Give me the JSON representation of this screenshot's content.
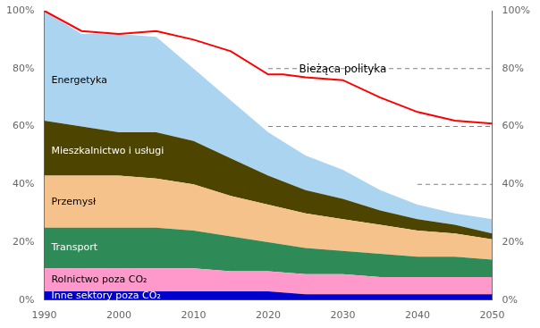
{
  "chart_data": {
    "type": "area",
    "stacked": true,
    "x": [
      1990,
      1995,
      2000,
      2005,
      2010,
      2015,
      2020,
      2025,
      2030,
      2035,
      2040,
      2045,
      2050
    ],
    "series": [
      {
        "name": "Inne sektory poza CO₂",
        "color": "#0000cc",
        "values": [
          3,
          3,
          3,
          3,
          3,
          3,
          3,
          2,
          2,
          2,
          2,
          2,
          2
        ]
      },
      {
        "name": "Rolnictwo poza CO₂",
        "color": "#ff99cc",
        "values": [
          8,
          8,
          8,
          8,
          8,
          7,
          7,
          7,
          7,
          6,
          6,
          6,
          6
        ]
      },
      {
        "name": "Transport",
        "color": "#2e8b57",
        "values": [
          14,
          14,
          14,
          14,
          13,
          12,
          10,
          9,
          8,
          8,
          7,
          7,
          6
        ]
      },
      {
        "name": "Przemysł",
        "color": "#f4c28a",
        "values": [
          18,
          18,
          18,
          17,
          16,
          14,
          13,
          12,
          11,
          10,
          9,
          8,
          7
        ]
      },
      {
        "name": "Mieszkalnictwo i usługi",
        "color": "#4d4400",
        "values": [
          19,
          17,
          15,
          16,
          15,
          13,
          10,
          8,
          7,
          5,
          4,
          3,
          2
        ]
      },
      {
        "name": "Energetyka",
        "color": "#aad4f0",
        "values": [
          38,
          32,
          34,
          33,
          25,
          20,
          15,
          12,
          10,
          7,
          5,
          4,
          5
        ]
      },
      {
        "name": "Bieżąca polityka",
        "type": "line",
        "color": "red",
        "x": [
          1990,
          1995,
          2000,
          2005,
          2010,
          2015,
          2020,
          2022,
          2025,
          2030,
          2035,
          2040,
          2045,
          2050
        ],
        "values": [
          100,
          93,
          92,
          93,
          90,
          86,
          78,
          78,
          77,
          76,
          70,
          65,
          62,
          61
        ]
      },
      {
        "type": "line",
        "line_style": "dashed",
        "color": "gray",
        "x": [
          2020,
          2050
        ],
        "values": [
          80,
          80
        ]
      },
      {
        "type": "line",
        "line_style": "dashed",
        "color": "gray",
        "x": [
          2020,
          2050
        ],
        "values": [
          60,
          60
        ]
      },
      {
        "type": "line",
        "line_style": "dashed",
        "color": "gray",
        "x": [
          2040,
          2050
        ],
        "values": [
          40,
          40
        ]
      }
    ],
    "xlim": [
      1990,
      2050
    ],
    "xticks": [
      1990,
      2000,
      2010,
      2020,
      2030,
      2040,
      2050
    ],
    "ylim": [
      0,
      100
    ],
    "yticks": [
      {
        "value": 0,
        "label": "0%"
      },
      {
        "value": 20,
        "label": "20%"
      },
      {
        "value": 40,
        "label": "40%"
      },
      {
        "value": 60,
        "label": "60%"
      },
      {
        "value": 80,
        "label": "80%"
      },
      {
        "value": 100,
        "label": "100%"
      }
    ],
    "y2lim": [
      0,
      100
    ],
    "y2ticks": [
      {
        "value": 0,
        "label": "0%"
      },
      {
        "value": 20,
        "label": "20%"
      },
      {
        "value": 40,
        "label": "40%"
      },
      {
        "value": 60,
        "label": "60%"
      },
      {
        "value": 80,
        "label": "80%"
      },
      {
        "value": 100,
        "label": "100%"
      }
    ],
    "grid": false
  }
}
